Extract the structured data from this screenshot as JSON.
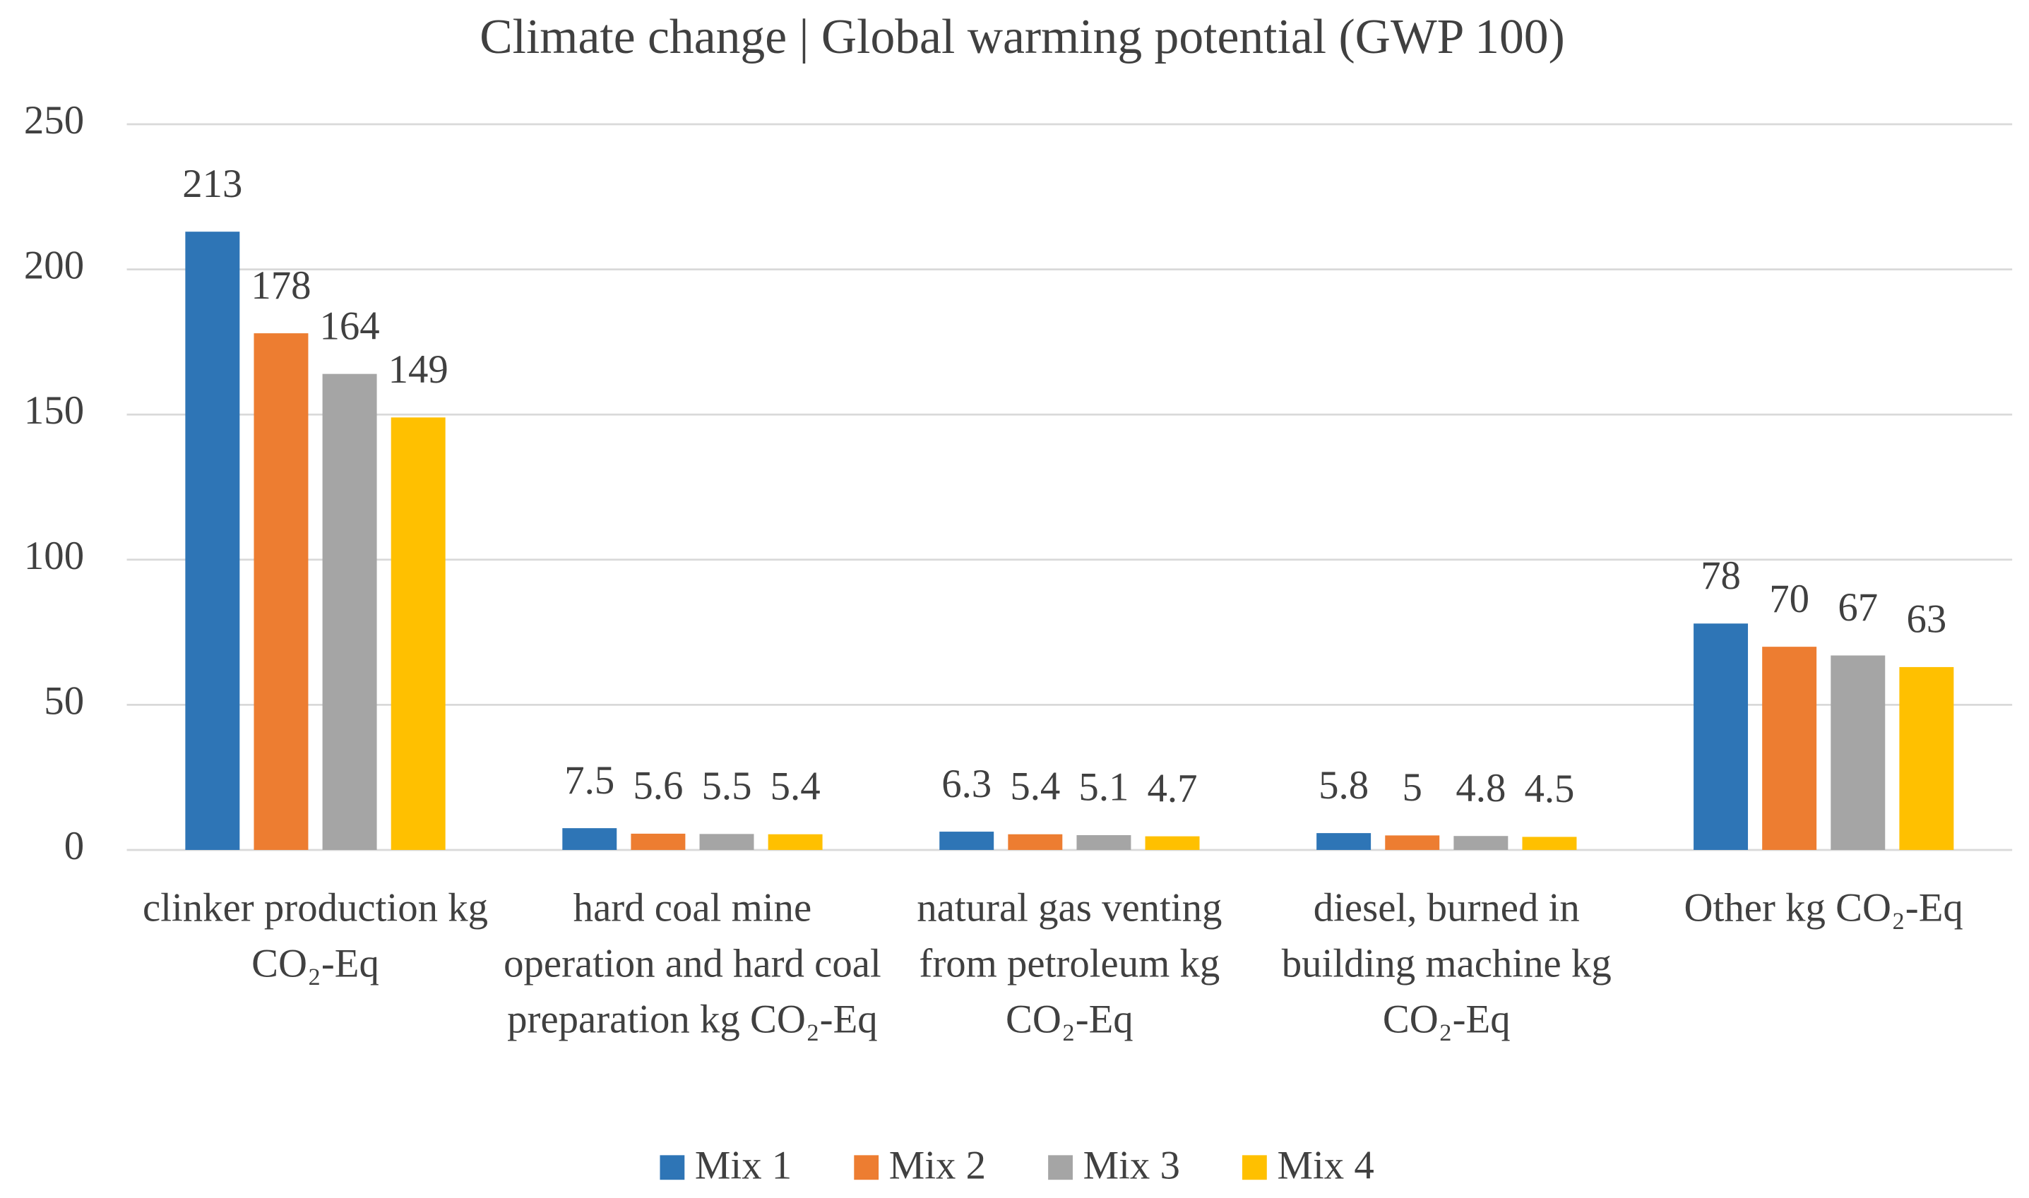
{
  "chart_data": {
    "type": "bar",
    "title": "Climate change | Global warming potential (GWP 100)",
    "categories": [
      "clinker production kg CO₂-Eq",
      "hard coal mine operation and hard coal preparation kg CO₂-Eq",
      "natural gas venting from petroleum kg CO₂-Eq",
      "diesel, burned in building machine kg CO₂-Eq",
      "Other kg CO₂-Eq"
    ],
    "series": [
      {
        "name": "Mix 1",
        "color": "#2e75b6",
        "values": [
          213,
          7.5,
          6.3,
          5.8,
          78
        ]
      },
      {
        "name": "Mix 2",
        "color": "#ed7d31",
        "values": [
          178,
          5.6,
          5.4,
          5,
          70
        ]
      },
      {
        "name": "Mix 3",
        "color": "#a5a5a5",
        "values": [
          164,
          5.5,
          5.1,
          4.8,
          67
        ]
      },
      {
        "name": "Mix 4",
        "color": "#ffc000",
        "values": [
          149,
          5.4,
          4.7,
          4.5,
          63
        ]
      }
    ],
    "ylim": [
      0,
      250
    ],
    "yticks": [
      0,
      50,
      100,
      150,
      200,
      250
    ],
    "grid": true,
    "legend": "bottom"
  }
}
